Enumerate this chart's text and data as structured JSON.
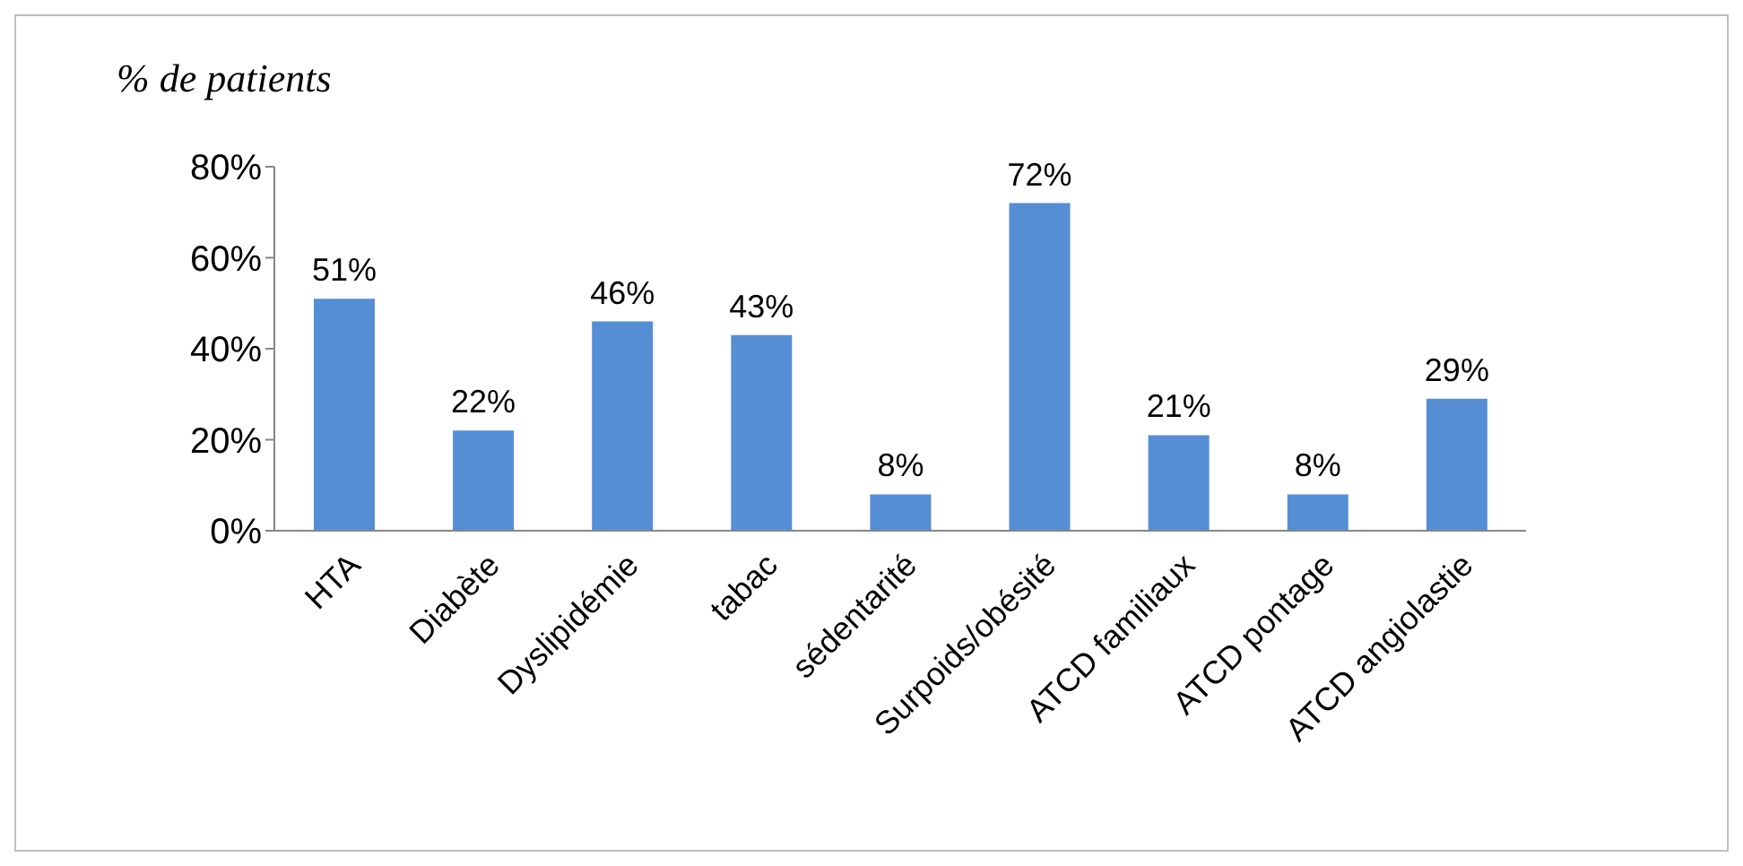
{
  "chart_data": {
    "type": "bar",
    "ylabel": "% de patients",
    "categories": [
      "HTA",
      "Diabète",
      "Dyslipidémie",
      "tabac",
      "sédentarité",
      "Surpoids/obésité",
      "ATCD familiaux",
      "ATCD pontage",
      "ATCD angiolastie"
    ],
    "values": [
      51,
      22,
      46,
      43,
      8,
      72,
      21,
      8,
      29
    ],
    "value_labels": [
      "51%",
      "22%",
      "46%",
      "43%",
      "8%",
      "72%",
      "21%",
      "8%",
      "29%"
    ],
    "color": "#558ed5",
    "ylim": [
      0,
      80
    ],
    "yticks": [
      {
        "value": 0,
        "label": "0%"
      },
      {
        "value": 20,
        "label": "20%"
      },
      {
        "value": 40,
        "label": "40%"
      },
      {
        "value": 60,
        "label": "60%"
      },
      {
        "value": 80,
        "label": "80%"
      }
    ],
    "grid": false,
    "legend": false
  }
}
